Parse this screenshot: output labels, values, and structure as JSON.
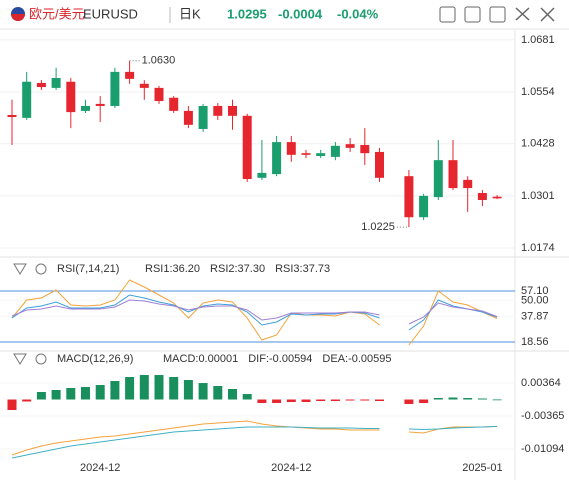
{
  "header": {
    "name": "欧元/美元",
    "symbol": "EURUSD",
    "period": "日K",
    "price": 1.0295,
    "change": -0.0004,
    "change_pct": "-0.04%"
  },
  "chart_data": [
    {
      "type": "candlestick",
      "up_color": "#1a9e6e",
      "down_color": "#e6262e",
      "grid": true,
      "ylim": [
        1.0157,
        1.0705
      ],
      "yticks": [
        1.0681,
        1.0554,
        1.0428,
        1.0301,
        1.0174
      ],
      "annotations": [
        "1.0630",
        "1.0225"
      ],
      "open": [
        1.0498,
        1.0491,
        1.0576,
        1.0564,
        1.0579,
        1.0508,
        1.0525,
        1.052,
        1.0603,
        1.0574,
        1.0564,
        1.054,
        1.0508,
        1.0464,
        1.052,
        1.052,
        1.0496,
        1.0345,
        1.0354,
        1.0432,
        1.0405,
        1.0398,
        1.0396,
        1.0427,
        1.0425,
        1.0408,
        null,
        1.0349,
        1.0249,
        1.0298,
        1.0388,
        1.034,
        1.0308,
        1.0299
      ],
      "high": [
        1.0535,
        1.0603,
        1.0583,
        1.0613,
        1.0588,
        1.0535,
        1.0544,
        1.0613,
        1.063,
        1.0583,
        1.0569,
        1.0544,
        1.052,
        1.0525,
        1.0527,
        1.0535,
        1.0501,
        1.0437,
        1.0447,
        1.0447,
        1.0413,
        1.0413,
        1.0432,
        1.0442,
        1.0466,
        1.0418,
        null,
        1.0364,
        1.0306,
        1.0437,
        1.0437,
        1.0349,
        1.0315,
        1.0303
      ],
      "low": [
        1.0425,
        1.0486,
        1.0559,
        1.0559,
        1.0466,
        1.0503,
        1.0481,
        1.0515,
        1.0574,
        1.0535,
        1.0525,
        1.0503,
        1.0466,
        1.0457,
        1.0486,
        1.0462,
        1.0335,
        1.034,
        1.0349,
        1.0384,
        1.0393,
        1.0393,
        1.0388,
        1.0408,
        1.0376,
        1.0335,
        null,
        1.0225,
        1.0242,
        1.0291,
        1.0315,
        1.0262,
        1.0276,
        1.0293
      ],
      "close": [
        1.0493,
        1.0579,
        1.0566,
        1.0588,
        1.0505,
        1.052,
        1.052,
        1.0603,
        1.0586,
        1.0564,
        1.0532,
        1.0508,
        1.0474,
        1.052,
        1.0496,
        1.0496,
        1.0342,
        1.0357,
        1.0432,
        1.0401,
        1.0401,
        1.0405,
        1.0423,
        1.0418,
        1.0405,
        1.0345,
        null,
        1.0249,
        1.0301,
        1.0388,
        1.032,
        1.032,
        1.0291,
        1.0295
      ]
    },
    {
      "type": "line",
      "title": "RSI(7,14,21)",
      "ylim": [
        12.5,
        66.9
      ],
      "yticks": [
        {
          "value": 57.1,
          "label": "57.10"
        },
        {
          "value": 50,
          "label": "50.00"
        },
        37.87,
        18.56
      ],
      "reference_lines": [
        57.1,
        18.56
      ],
      "reference_color": "#4d8fe0",
      "series": [
        {
          "name": "RSI1:36.20",
          "color": "#f5a23c",
          "values": [
            36.69,
            50.3,
            51.81,
            57.86,
            46.52,
            45.76,
            46.52,
            50.3,
            65.42,
            60.12,
            54.08,
            48.03,
            36.69,
            48.03,
            50.3,
            48.78,
            36.69,
            20.06,
            23.84,
            40.47,
            38.96,
            38.96,
            38.2,
            41.22,
            39.71,
            31.4,
            null,
            16.28,
            30.64,
            57.1,
            48.78,
            46.52,
            41.22,
            36.2
          ]
        },
        {
          "name": "RSI2:37.30",
          "color": "#3e9fd9",
          "values": [
            36.69,
            44.25,
            45.76,
            48.78,
            44.25,
            44.25,
            44.25,
            46.52,
            54.08,
            51.81,
            48.78,
            46.52,
            41.22,
            45.76,
            47.27,
            46.52,
            41.22,
            31.4,
            33.66,
            39.71,
            38.96,
            39.71,
            39.71,
            41.22,
            40.47,
            36.69,
            null,
            27.62,
            35.18,
            50.3,
            45.76,
            43.49,
            41.22,
            37.3
          ]
        },
        {
          "name": "RSI3:37.73",
          "color": "#a07fd6",
          "values": [
            38.2,
            42.74,
            43.49,
            45.76,
            43.49,
            43.49,
            43.49,
            45.01,
            50.3,
            49.54,
            47.27,
            45.76,
            42.74,
            45.01,
            45.76,
            45.76,
            42.74,
            35.18,
            36.69,
            40.47,
            40.47,
            40.47,
            40.47,
            41.22,
            41.22,
            38.96,
            null,
            32.15,
            37.44,
            48.03,
            45.01,
            43.49,
            41.98,
            37.73
          ]
        }
      ]
    },
    {
      "type": "bar",
      "title": "MACD(12,26,9)",
      "ylim": [
        -0.01381,
        0.00652
      ],
      "yticks": [
        0.00364,
        -0.00365,
        -0.01094
      ],
      "categories": [
        null,
        null,
        null,
        null,
        null,
        null,
        "2024-12",
        null,
        null,
        null,
        null,
        null,
        null,
        null,
        null,
        null,
        null,
        null,
        null,
        "2024-12",
        null,
        null,
        null,
        null,
        null,
        null,
        null,
        null,
        null,
        null,
        null,
        null,
        "2025-01",
        null
      ],
      "series": [
        {
          "name": "MACD:0.00001",
          "type": "bar",
          "color": "#a07fd6",
          "up_color": "#1a8f5e",
          "down_color": "#e6262e",
          "values": [
            -0.00232,
            -0.00044,
            0.00166,
            0.0021,
            0.00254,
            0.00276,
            0.0032,
            0.00409,
            0.00497,
            0.00541,
            0.00541,
            0.00497,
            0.00431,
            0.00364,
            0.00298,
            0.00232,
            0.00121,
            -0.00077,
            -0.00077,
            -0.00055,
            -0.00055,
            -0.00033,
            -0.00033,
            -0.00022,
            -0.00022,
            -0.00033,
            null,
            -0.00099,
            -0.00077,
            0.00033,
            0.00044,
            0.00033,
            0.00022,
            1e-05
          ]
        },
        {
          "name": "DIF:-0.00594",
          "type": "line",
          "color": "#f5a23c",
          "values": [
            -0.01226,
            -0.01116,
            -0.01027,
            -0.00961,
            -0.00917,
            -0.00873,
            -0.00828,
            -0.00806,
            -0.00762,
            -0.00718,
            -0.00674,
            -0.0063,
            -0.00585,
            -0.00541,
            -0.00519,
            -0.00497,
            -0.00475,
            -0.00541,
            -0.00585,
            -0.00607,
            -0.0063,
            -0.00652,
            -0.00652,
            -0.00674,
            -0.00674,
            -0.00674,
            null,
            -0.00718,
            -0.0074,
            -0.00652,
            -0.00607,
            -0.00607,
            -0.00607,
            -0.00594
          ]
        },
        {
          "name": "DEA:-0.00595",
          "type": "line",
          "color": "#3fb0c4",
          "values": [
            -0.01292,
            -0.01226,
            -0.0116,
            -0.01093,
            -0.01027,
            -0.00983,
            -0.00939,
            -0.00895,
            -0.0085,
            -0.00806,
            -0.00762,
            -0.00718,
            -0.00696,
            -0.00674,
            -0.00652,
            -0.0063,
            -0.00607,
            -0.00607,
            -0.00607,
            -0.00607,
            -0.00619,
            -0.0063,
            -0.0063,
            -0.0063,
            -0.00641,
            -0.00641,
            null,
            -0.00652,
            -0.00663,
            -0.00652,
            -0.0063,
            -0.00619,
            -0.00607,
            -0.00595
          ]
        }
      ]
    }
  ]
}
